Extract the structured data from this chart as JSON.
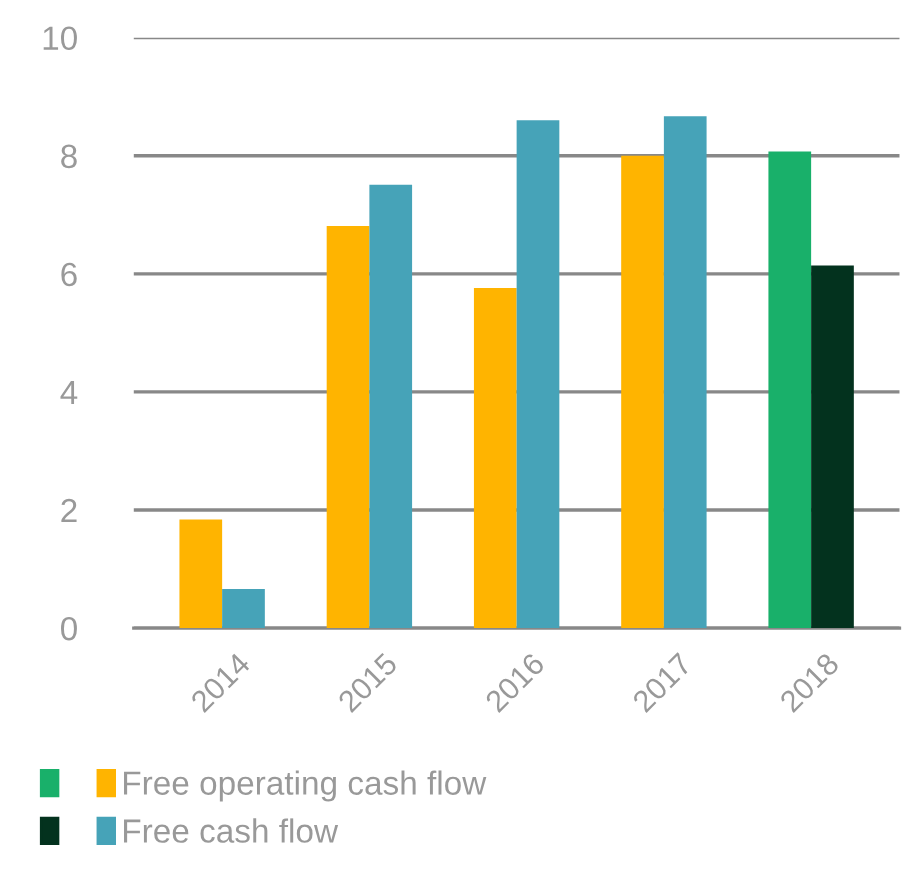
{
  "chart_data": {
    "type": "bar",
    "categories": [
      "2014",
      "2015",
      "2016",
      "2017",
      "2018"
    ],
    "series": [
      {
        "name": "Free operating cash flow",
        "colors": [
          "#ffb400",
          "#ffb400",
          "#ffb400",
          "#ffb400",
          "#19b06a"
        ],
        "values": [
          1.84,
          6.81,
          5.76,
          8.0,
          8.07
        ]
      },
      {
        "name": "Free cash flow",
        "colors": [
          "#46a3b8",
          "#46a3b8",
          "#46a3b8",
          "#46a3b8",
          "#03321e"
        ],
        "values": [
          0.66,
          7.51,
          8.6,
          8.67,
          6.14
        ]
      }
    ],
    "ylim": [
      0,
      10
    ],
    "yticks": [
      0,
      2,
      4,
      6,
      8,
      10
    ],
    "grid": "y",
    "legend": "bottom left"
  }
}
